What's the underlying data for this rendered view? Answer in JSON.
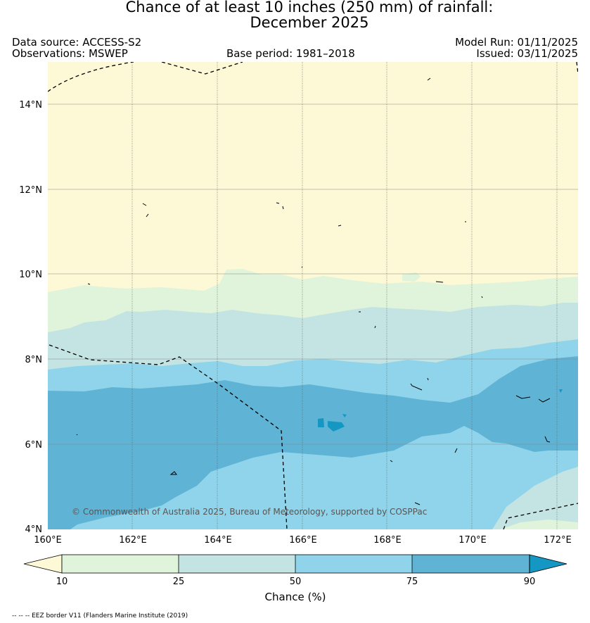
{
  "title": {
    "line1": "Chance of at least 10 inches (250  mm) of rainfall:",
    "line2": "December 2025"
  },
  "meta": {
    "data_source": "Data source: ACCESS-S2",
    "observations": "Observations: MSWEP",
    "base_period": "Base period: 1981–2018",
    "model_run": "Model Run: 01/11/2025",
    "issued": "Issued: 03/11/2025"
  },
  "map": {
    "lat_labels": [
      "14°N",
      "12°N",
      "10°N",
      "8°N",
      "6°N",
      "4°N"
    ],
    "lon_labels": [
      "160°E",
      "162°E",
      "164°E",
      "166°E",
      "168°E",
      "170°E",
      "172°E"
    ],
    "copyright": "© Commonwealth of Australia 2025, Bureau of Meteorology, supported by COSPPac",
    "extent": {
      "lon_min": 160,
      "lon_max": 172.5,
      "lat_min": 4,
      "lat_max": 15
    }
  },
  "colorbar": {
    "ticks": [
      "10",
      "25",
      "50",
      "75",
      "90"
    ],
    "label": "Chance (%)",
    "colors": [
      "#fdf8d5",
      "#dff4da",
      "#c3e4e2",
      "#8fd4ea",
      "#5fb3d5",
      "#1597c4"
    ]
  },
  "footer": {
    "eez_note": "-- -- -- EEZ border V11 (Flanders Marine Institute (2019)"
  }
}
